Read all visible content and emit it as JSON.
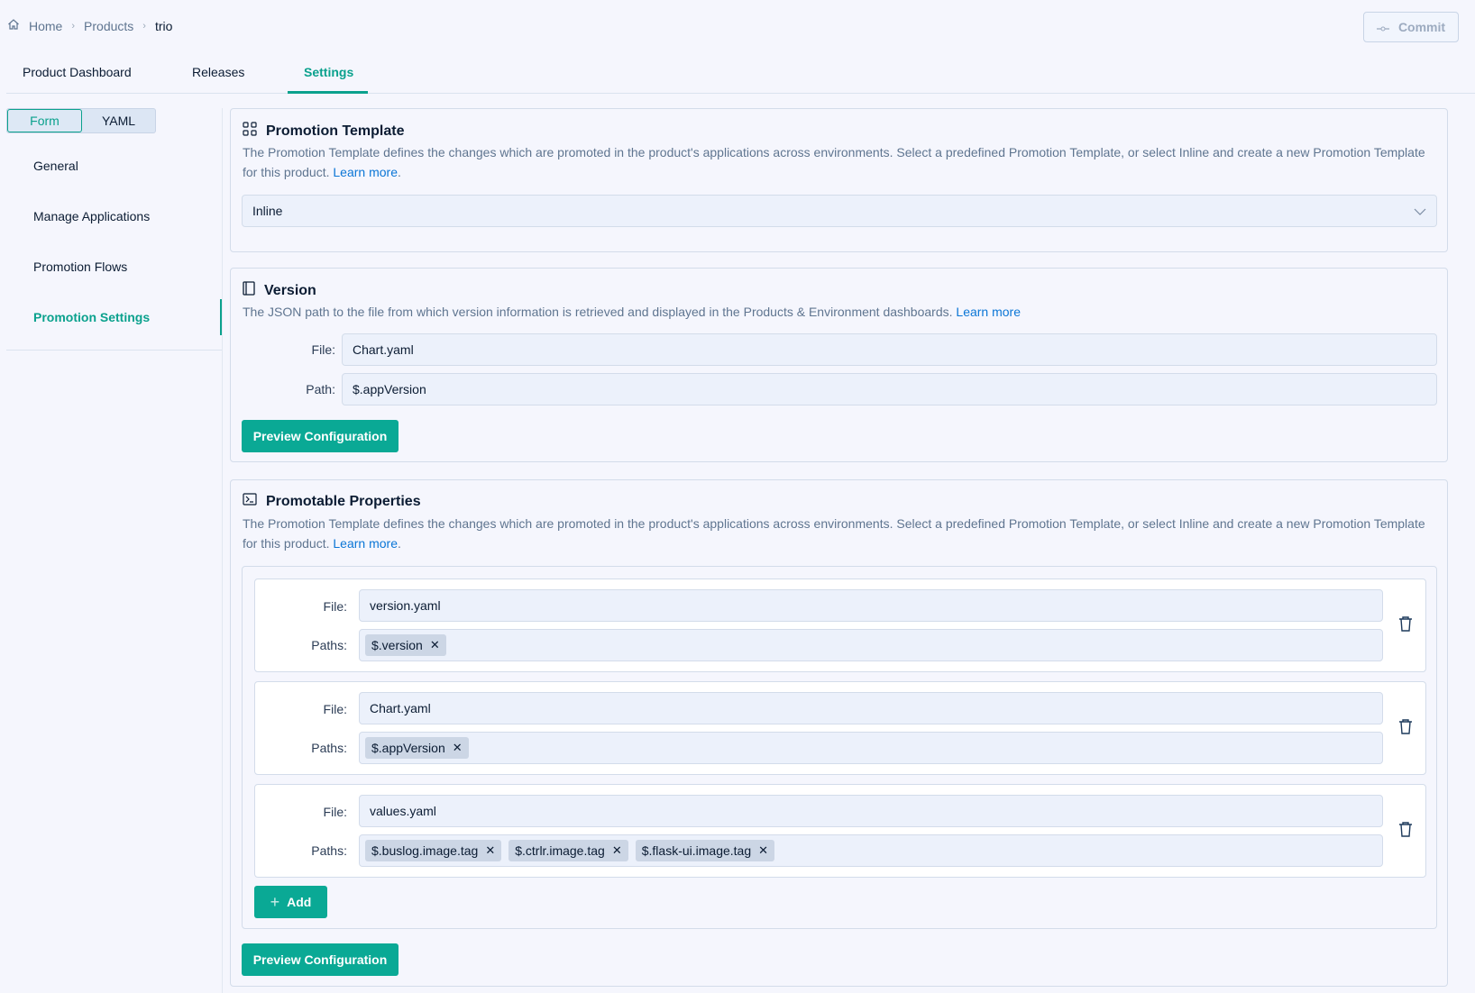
{
  "breadcrumb": {
    "home": "Home",
    "products": "Products",
    "current": "trio"
  },
  "commit_label": "Commit",
  "tabs": [
    "Product Dashboard",
    "Releases",
    "Settings"
  ],
  "active_tab": "Settings",
  "view_toggle": {
    "form": "Form",
    "yaml": "YAML",
    "active": "Form"
  },
  "sidebar": {
    "items": [
      "General",
      "Manage Applications",
      "Promotion Flows",
      "Promotion Settings"
    ],
    "active": "Promotion Settings"
  },
  "promotion_template": {
    "title": "Promotion Template",
    "description": "The Promotion Template defines the changes which are promoted in the product's applications across environments. Select a predefined Promotion Template, or select Inline and create a new Promotion Template for this product.",
    "learn_more": "Learn more",
    "selected": "Inline"
  },
  "version": {
    "title": "Version",
    "description": "The JSON path to the file from which version information is retrieved and displayed in the Products & Environment dashboards.",
    "learn_more": "Learn more",
    "file_label": "File:",
    "file_value": "Chart.yaml",
    "path_label": "Path:",
    "path_value": "$.appVersion",
    "preview_label": "Preview Configuration"
  },
  "promotable": {
    "title": "Promotable Properties",
    "description": "The Promotion Template defines the changes which are promoted in the product's applications across environments. Select a predefined Promotion Template, or select Inline and create a new Promotion Template for this product.",
    "learn_more": "Learn more",
    "file_label": "File:",
    "paths_label": "Paths:",
    "rows": [
      {
        "file": "version.yaml",
        "paths": [
          "$.version"
        ]
      },
      {
        "file": "Chart.yaml",
        "paths": [
          "$.appVersion"
        ]
      },
      {
        "file": "values.yaml",
        "paths": [
          "$.buslog.image.tag",
          "$.ctrlr.image.tag",
          "$.flask-ui.image.tag"
        ]
      }
    ],
    "add_label": "Add",
    "preview_label": "Preview Configuration"
  },
  "colors": {
    "accent": "#0aa995",
    "link": "#0b76d6"
  }
}
